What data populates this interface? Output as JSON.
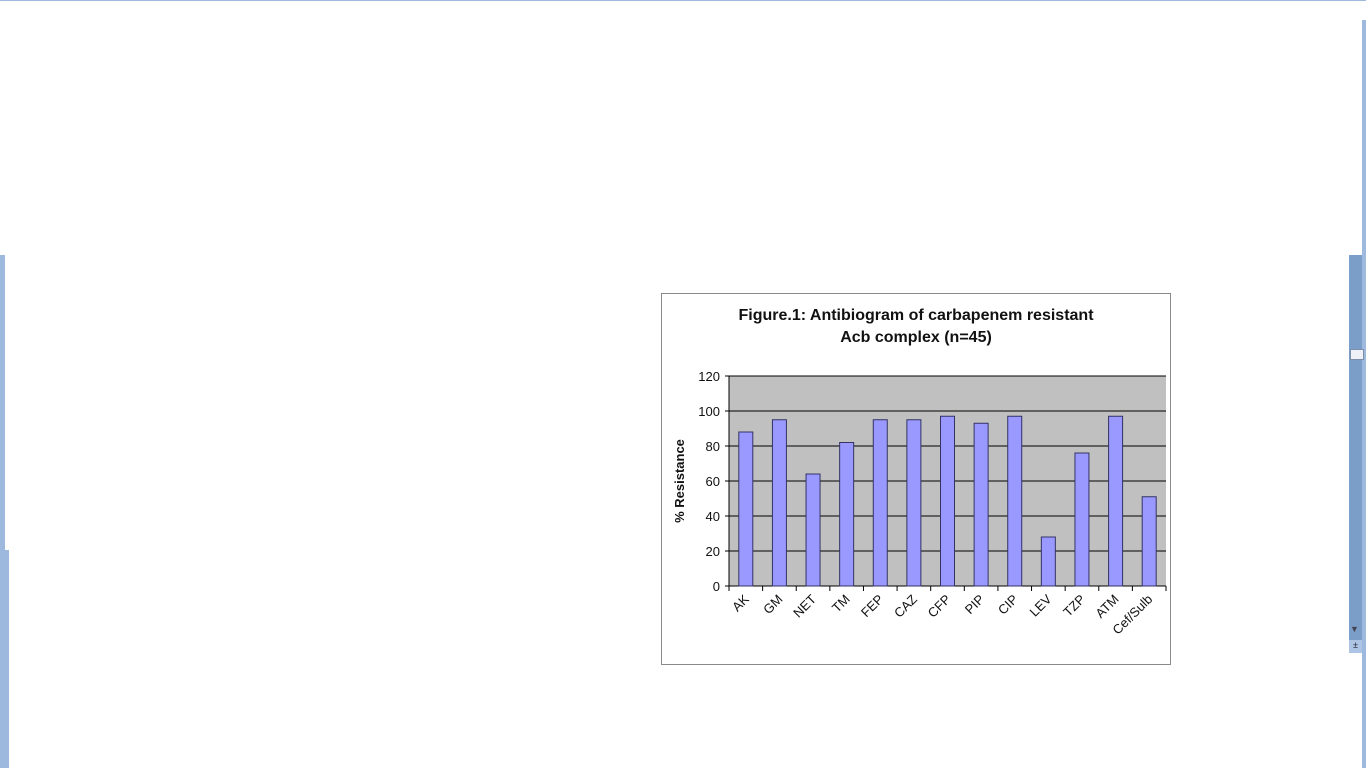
{
  "chart_data": {
    "type": "bar",
    "title": "Figure.1: Antibiogram of carbapenem resistant",
    "title_line2": "Acb complex (n=45)",
    "xlabel": "",
    "ylabel": "% Resistance",
    "ylim": [
      0,
      120
    ],
    "yticks": [
      0,
      20,
      40,
      60,
      80,
      100,
      120
    ],
    "grid": true,
    "categories": [
      "AK",
      "GM",
      "NET",
      "TM",
      "FEP",
      "CAZ",
      "CFP",
      "PIP",
      "CIP",
      "LEV",
      "TZP",
      "ATM",
      "Cef/Sulb"
    ],
    "values": [
      88,
      95,
      64,
      82,
      95,
      95,
      97,
      93,
      97,
      28,
      76,
      97,
      51
    ],
    "colors": {
      "bar": "#9999ff",
      "bar_edge": "#333366",
      "plot_bg": "#c0c0c0",
      "grid": "#000000"
    }
  },
  "window": {
    "scrollbar_icons": [
      "scroll-thumb-icon",
      "chevron-down-icon",
      "previous-page-icon"
    ]
  }
}
